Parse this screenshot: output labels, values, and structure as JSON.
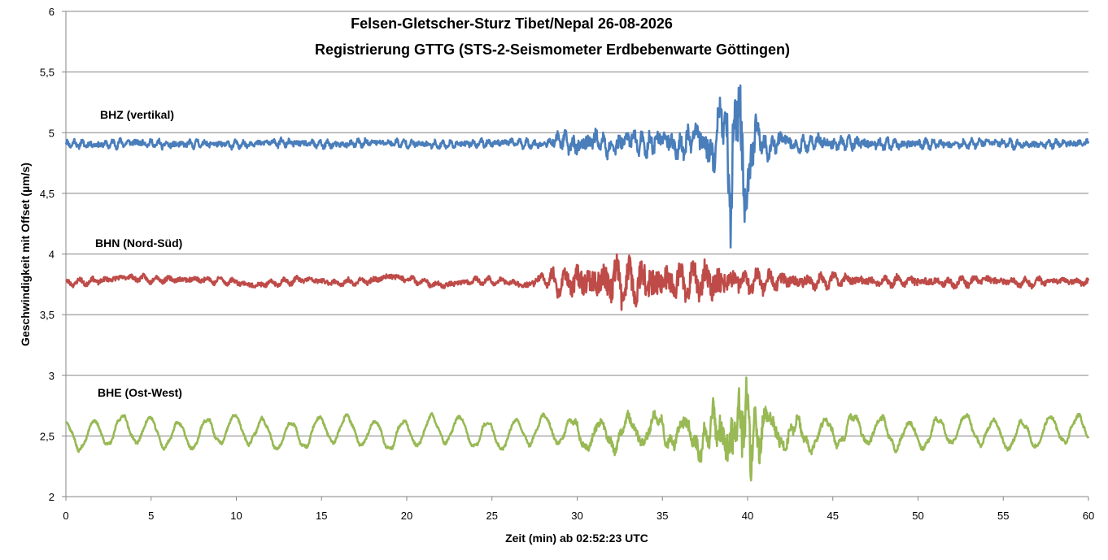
{
  "chart_data": {
    "type": "line",
    "title": "Felsen-Gletscher-Sturz Tibet/Nepal 26-08-2026",
    "subtitle": "Registrierung GTTG (STS-2-Seismometer Erdbebenwarte Göttingen)",
    "xlabel": "Zeit (min) ab 02:52:23 UTC",
    "ylabel": "Geschwindigkeit mit Offset (µm/s)",
    "xlim": [
      0,
      60
    ],
    "ylim": [
      2,
      6
    ],
    "x_ticks": [
      0,
      5,
      10,
      15,
      20,
      25,
      30,
      35,
      40,
      45,
      50,
      55,
      60
    ],
    "x_tick_labels": [
      "0",
      "5",
      "10",
      "15",
      "20",
      "25",
      "30",
      "35",
      "40",
      "45",
      "50",
      "55",
      "60"
    ],
    "y_ticks": [
      2,
      2.5,
      3,
      3.5,
      4,
      4.5,
      5,
      5.5,
      6
    ],
    "y_tick_labels": [
      "2",
      "2,5",
      "3",
      "3,5",
      "4",
      "4,5",
      "5",
      "5,5",
      "6"
    ],
    "grid": true,
    "legend": "none",
    "series": [
      {
        "name": "BHZ (vertikal)",
        "color": "#4a7ebb",
        "x": [
          0,
          2,
          4,
          6,
          8,
          10,
          12,
          14,
          16,
          18,
          20,
          22,
          24,
          26,
          28,
          29,
          30,
          31,
          32,
          33,
          34,
          35,
          36,
          37,
          38,
          38.5,
          39,
          39.5,
          39.8,
          40.5,
          41,
          42,
          43,
          44,
          45,
          46,
          48,
          50,
          52,
          54,
          56,
          58,
          60
        ],
        "values": [
          4.91,
          4.9,
          4.92,
          4.9,
          4.91,
          4.9,
          4.92,
          4.91,
          4.9,
          4.92,
          4.91,
          4.9,
          4.91,
          4.92,
          4.9,
          4.95,
          4.88,
          4.95,
          4.87,
          4.96,
          4.88,
          4.97,
          4.86,
          5.0,
          4.8,
          5.2,
          4.5,
          5.4,
          4.4,
          5.05,
          4.85,
          4.95,
          4.88,
          4.94,
          4.9,
          4.92,
          4.9,
          4.91,
          4.9,
          4.92,
          4.9,
          4.91,
          4.91
        ],
        "envelope_x": [
          0,
          26,
          28,
          29,
          30,
          31,
          32,
          33,
          34,
          35,
          36,
          37,
          37.5,
          38,
          38.5,
          39,
          39.3,
          39.7,
          40,
          40.5,
          41,
          42,
          43,
          44,
          45,
          46,
          47,
          48,
          50,
          52,
          55,
          60
        ],
        "envelope": [
          0.045,
          0.045,
          0.05,
          0.08,
          0.12,
          0.11,
          0.1,
          0.12,
          0.13,
          0.12,
          0.15,
          0.15,
          0.18,
          0.25,
          0.35,
          0.45,
          0.55,
          0.5,
          0.35,
          0.2,
          0.13,
          0.1,
          0.09,
          0.08,
          0.08,
          0.07,
          0.07,
          0.06,
          0.055,
          0.05,
          0.045,
          0.045
        ],
        "wave_period": 0.45,
        "seed": 11
      },
      {
        "name": "BHN (Nord-Süd)",
        "color": "#be4b48",
        "x": [
          0,
          2,
          3.5,
          5,
          8,
          10,
          11,
          14,
          16,
          18,
          19,
          22,
          24,
          26,
          27,
          28,
          29,
          30,
          31,
          32,
          33,
          34,
          34.5,
          35,
          36,
          37,
          38,
          38.2,
          39,
          40,
          42,
          44,
          46,
          48,
          50,
          52,
          54,
          56,
          58,
          60
        ],
        "values": [
          3.76,
          3.78,
          3.81,
          3.79,
          3.79,
          3.77,
          3.74,
          3.79,
          3.76,
          3.78,
          3.82,
          3.74,
          3.78,
          3.77,
          3.74,
          3.8,
          3.76,
          3.78,
          3.77,
          3.78,
          3.76,
          3.79,
          3.77,
          3.78,
          3.76,
          3.79,
          3.77,
          3.75,
          3.78,
          3.77,
          3.78,
          3.77,
          3.79,
          3.77,
          3.78,
          3.76,
          3.79,
          3.76,
          3.78,
          3.77
        ],
        "envelope_x": [
          0,
          26,
          27,
          28,
          29,
          30,
          31,
          32,
          33,
          34,
          34.5,
          35,
          36,
          37,
          38,
          38.3,
          39,
          40,
          41,
          42,
          44,
          46,
          48,
          50,
          55,
          60
        ],
        "envelope": [
          0.04,
          0.04,
          0.05,
          0.08,
          0.14,
          0.2,
          0.22,
          0.24,
          0.24,
          0.26,
          0.27,
          0.23,
          0.2,
          0.2,
          0.22,
          0.28,
          0.16,
          0.13,
          0.11,
          0.1,
          0.08,
          0.07,
          0.06,
          0.06,
          0.05,
          0.05
        ],
        "wave_period": 0.75,
        "seed": 23
      },
      {
        "name": "BHE (Ost-West)",
        "color": "#98b954",
        "x": [
          0,
          60
        ],
        "values": [
          2.53,
          2.53
        ],
        "microseism_period": 1.65,
        "microseism_amp": 0.11,
        "envelope_x": [
          0,
          27,
          29,
          30,
          31,
          33,
          35,
          36,
          37,
          38,
          38.5,
          39,
          39.5,
          39.8,
          40.3,
          41,
          42,
          44,
          46,
          48,
          50,
          55,
          60
        ],
        "envelope": [
          0.025,
          0.025,
          0.03,
          0.05,
          0.06,
          0.07,
          0.08,
          0.1,
          0.14,
          0.2,
          0.3,
          0.35,
          0.45,
          0.5,
          0.35,
          0.18,
          0.1,
          0.06,
          0.05,
          0.04,
          0.035,
          0.03,
          0.03
        ],
        "wave_period": 0.5,
        "seed": 37
      }
    ]
  }
}
